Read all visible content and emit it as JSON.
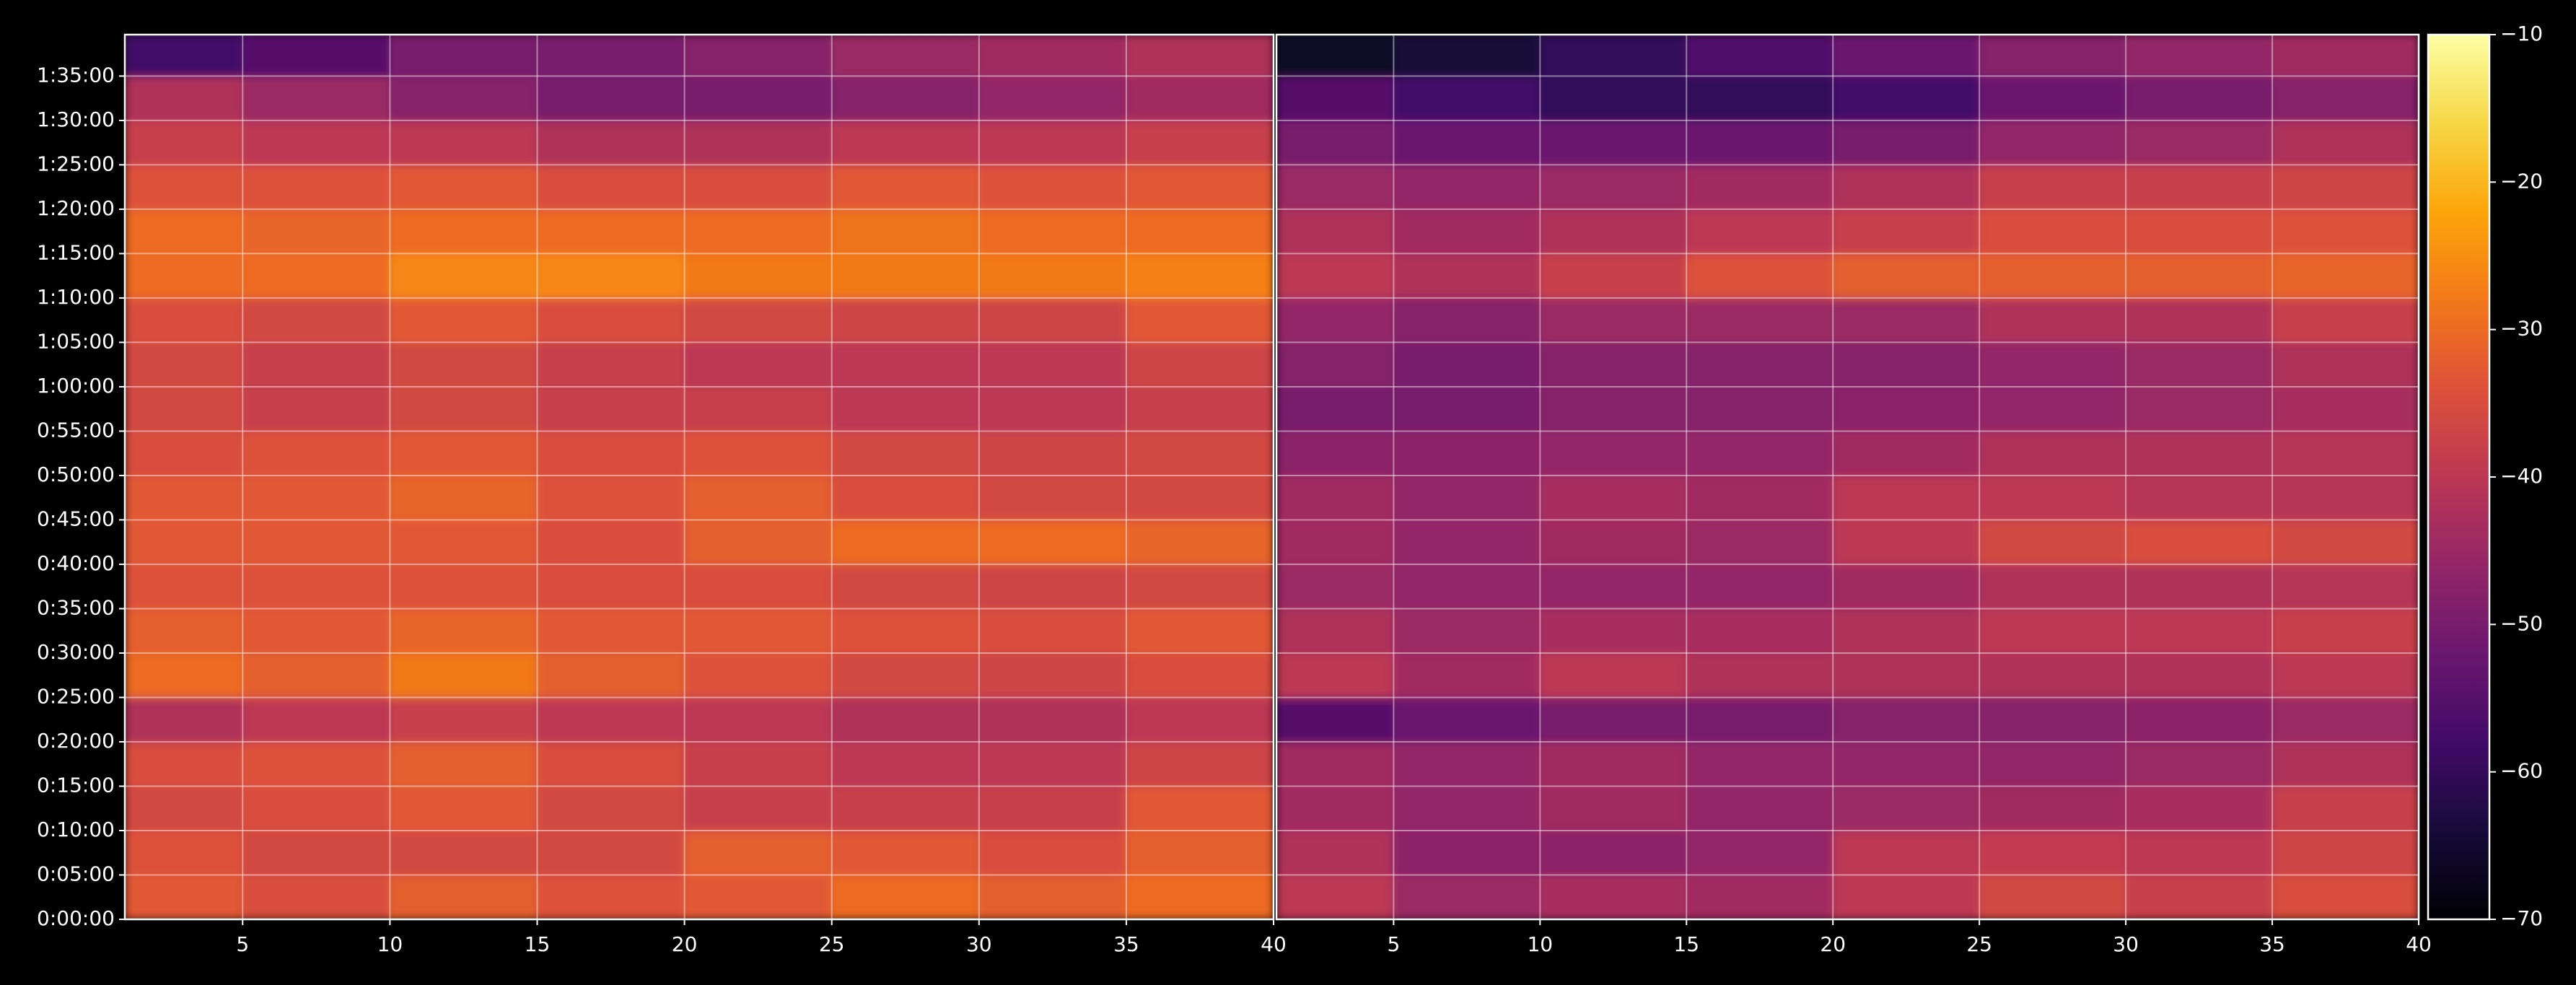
{
  "chart_data": [
    {
      "type": "heatmap",
      "colormap": "inferno",
      "grid": true,
      "xbins": [
        1,
        5,
        10,
        15,
        20,
        25,
        30,
        35,
        40
      ],
      "ybins": [
        0,
        300,
        600,
        900,
        1200,
        1500,
        1800,
        2100,
        2400,
        2700,
        3000,
        3300,
        3600,
        3900,
        4200,
        4500,
        4800,
        5100,
        5400,
        5700,
        5980
      ],
      "xlim": [
        1,
        40
      ],
      "xticks": [
        5,
        10,
        15,
        20,
        25,
        30,
        35,
        40
      ],
      "ylim": [
        0,
        5980
      ],
      "yticks": [
        {
          "value": 0,
          "label": "0:00:00"
        },
        {
          "value": 300,
          "label": "0:05:00"
        },
        {
          "value": 600,
          "label": "0:10:00"
        },
        {
          "value": 900,
          "label": "0:15:00"
        },
        {
          "value": 1200,
          "label": "0:20:00"
        },
        {
          "value": 1500,
          "label": "0:25:00"
        },
        {
          "value": 1800,
          "label": "0:30:00"
        },
        {
          "value": 2100,
          "label": "0:35:00"
        },
        {
          "value": 2400,
          "label": "0:40:00"
        },
        {
          "value": 2700,
          "label": "0:45:00"
        },
        {
          "value": 3000,
          "label": "0:50:00"
        },
        {
          "value": 3300,
          "label": "0:55:00"
        },
        {
          "value": 3600,
          "label": "1:00:00"
        },
        {
          "value": 3900,
          "label": "1:05:00"
        },
        {
          "value": 4200,
          "label": "1:10:00"
        },
        {
          "value": 4500,
          "label": "1:15:00"
        },
        {
          "value": 4800,
          "label": "1:20:00"
        },
        {
          "value": 5100,
          "label": "1:25:00"
        },
        {
          "value": 5400,
          "label": "1:30:00"
        },
        {
          "value": 5700,
          "label": "1:35:00"
        }
      ],
      "values": [
        [
          -33,
          -35,
          -32,
          -34,
          -33,
          -30,
          -32,
          -30
        ],
        [
          -34,
          -36,
          -36,
          -36,
          -32,
          -33,
          -35,
          -32
        ],
        [
          -36,
          -35,
          -33,
          -36,
          -38,
          -38,
          -38,
          -33
        ],
        [
          -35,
          -34,
          -32,
          -35,
          -38,
          -40,
          -40,
          -37
        ],
        [
          -42,
          -40,
          -38,
          -40,
          -40,
          -42,
          -42,
          -40
        ],
        [
          -30,
          -32,
          -28,
          -32,
          -34,
          -36,
          -37,
          -35
        ],
        [
          -32,
          -33,
          -31,
          -33,
          -33,
          -34,
          -35,
          -33
        ],
        [
          -34,
          -34,
          -34,
          -35,
          -35,
          -36,
          -37,
          -36
        ],
        [
          -33,
          -33,
          -33,
          -35,
          -32,
          -30,
          -30,
          -31
        ],
        [
          -33,
          -33,
          -31,
          -34,
          -32,
          -35,
          -36,
          -36
        ],
        [
          -35,
          -34,
          -33,
          -35,
          -34,
          -36,
          -37,
          -36
        ],
        [
          -36,
          -38,
          -36,
          -38,
          -38,
          -40,
          -40,
          -38
        ],
        [
          -36,
          -38,
          -36,
          -38,
          -40,
          -40,
          -40,
          -37
        ],
        [
          -35,
          -36,
          -33,
          -35,
          -36,
          -37,
          -37,
          -33
        ],
        [
          -30,
          -30,
          -26,
          -26,
          -28,
          -28,
          -28,
          -27
        ],
        [
          -30,
          -31,
          -30,
          -30,
          -30,
          -29,
          -30,
          -30
        ],
        [
          -34,
          -34,
          -33,
          -35,
          -35,
          -33,
          -34,
          -33
        ],
        [
          -38,
          -40,
          -40,
          -42,
          -42,
          -40,
          -40,
          -38
        ],
        [
          -42,
          -45,
          -48,
          -50,
          -50,
          -48,
          -46,
          -44
        ],
        [
          -58,
          -55,
          -50,
          -50,
          -48,
          -45,
          -44,
          -42
        ]
      ]
    },
    {
      "type": "heatmap",
      "colormap": "inferno",
      "grid": true,
      "sharey": true,
      "xbins": [
        1,
        5,
        10,
        15,
        20,
        25,
        30,
        35,
        40
      ],
      "ybins": [
        0,
        300,
        600,
        900,
        1200,
        1500,
        1800,
        2100,
        2400,
        2700,
        3000,
        3300,
        3600,
        3900,
        4200,
        4500,
        4800,
        5100,
        5400,
        5700,
        5980
      ],
      "xlim": [
        1,
        40
      ],
      "xticks": [
        5,
        10,
        15,
        20,
        25,
        30,
        35,
        40
      ],
      "ylim": [
        0,
        5980
      ],
      "values": [
        [
          -40,
          -45,
          -43,
          -44,
          -40,
          -36,
          -38,
          -35
        ],
        [
          -42,
          -47,
          -47,
          -46,
          -40,
          -39,
          -40,
          -37
        ],
        [
          -44,
          -46,
          -44,
          -46,
          -45,
          -44,
          -43,
          -38
        ],
        [
          -44,
          -46,
          -44,
          -46,
          -46,
          -46,
          -45,
          -42
        ],
        [
          -55,
          -52,
          -50,
          -50,
          -48,
          -48,
          -47,
          -45
        ],
        [
          -40,
          -44,
          -40,
          -42,
          -42,
          -42,
          -42,
          -40
        ],
        [
          -42,
          -45,
          -43,
          -43,
          -42,
          -40,
          -40,
          -38
        ],
        [
          -45,
          -46,
          -46,
          -46,
          -44,
          -42,
          -42,
          -41
        ],
        [
          -44,
          -46,
          -44,
          -45,
          -40,
          -36,
          -35,
          -36
        ],
        [
          -44,
          -46,
          -43,
          -44,
          -40,
          -40,
          -41,
          -41
        ],
        [
          -47,
          -47,
          -46,
          -46,
          -44,
          -42,
          -42,
          -41
        ],
        [
          -50,
          -50,
          -48,
          -48,
          -47,
          -46,
          -45,
          -43
        ],
        [
          -48,
          -50,
          -48,
          -48,
          -48,
          -46,
          -45,
          -42
        ],
        [
          -46,
          -48,
          -45,
          -45,
          -45,
          -42,
          -42,
          -38
        ],
        [
          -40,
          -42,
          -38,
          -34,
          -32,
          -32,
          -32,
          -31
        ],
        [
          -42,
          -44,
          -42,
          -40,
          -38,
          -35,
          -35,
          -34
        ],
        [
          -45,
          -46,
          -45,
          -44,
          -42,
          -38,
          -38,
          -37
        ],
        [
          -50,
          -52,
          -52,
          -52,
          -50,
          -46,
          -45,
          -42
        ],
        [
          -55,
          -58,
          -60,
          -60,
          -58,
          -52,
          -50,
          -48
        ],
        [
          -66,
          -64,
          -60,
          -56,
          -52,
          -48,
          -46,
          -44
        ]
      ],
      "colorbar": {
        "lim": [
          -70,
          -10
        ],
        "ticks": [
          {
            "value": -70,
            "label": "−70"
          },
          {
            "value": -60,
            "label": "−60"
          },
          {
            "value": -50,
            "label": "−50"
          },
          {
            "value": -40,
            "label": "−40"
          },
          {
            "value": -30,
            "label": "−30"
          },
          {
            "value": -20,
            "label": "−20"
          },
          {
            "value": -10,
            "label": "−10"
          }
        ]
      }
    }
  ]
}
